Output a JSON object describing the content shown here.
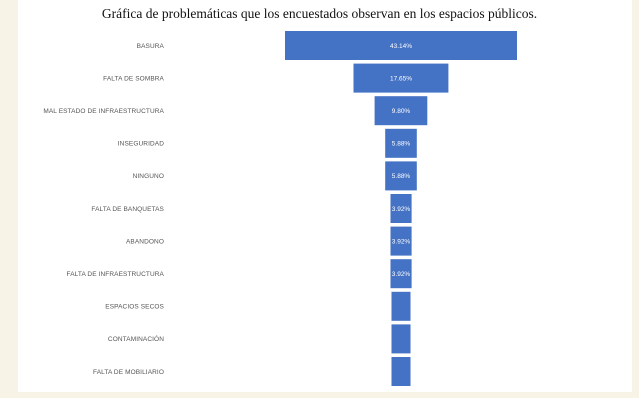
{
  "chart_data": {
    "type": "bar",
    "title": "Gráfica de problemáticas que los encuestados observan en los espacios públicos.",
    "categories": [
      "BASURA",
      "FALTA DE SOMBRA",
      "MAL ESTADO DE INFRAESTRUCTURA",
      "INSEGURIDAD",
      "NINGUNO",
      "FALTA DE BANQUETAS",
      "ABANDONO",
      "FALTA DE INFRAESTRUCTURA",
      "ESPACIOS SECOS",
      "CONTAMINACIÓN",
      "FALTA DE MOBILIARIO"
    ],
    "values": [
      43.14,
      17.65,
      9.8,
      5.88,
      5.88,
      3.92,
      3.92,
      3.92,
      1.96,
      1.96,
      1.96
    ],
    "data_labels": [
      "43.14%",
      "17.65%",
      "9.80%",
      "5.88%",
      "5.88%",
      "3.92%",
      "3.92%",
      "3.92%",
      "",
      "",
      ""
    ],
    "orientation": "horizontal-centered",
    "bar_color": "#4472c4",
    "grid": false,
    "legend": "none"
  }
}
